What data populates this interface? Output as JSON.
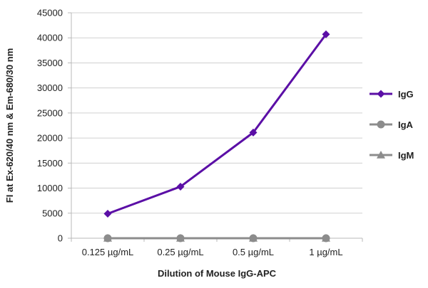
{
  "chart_data": {
    "type": "line",
    "title": "",
    "xlabel": "Dilution of Mouse IgG-APC",
    "ylabel": "FI at Ex-620/40 nm & Em-680/30 nm",
    "categories": [
      "0.125 µg/mL",
      "0.25 µg/mL",
      "0.5 µg/mL",
      "1 µg/mL"
    ],
    "ylim": [
      0,
      45000
    ],
    "yticks": [
      0,
      5000,
      10000,
      15000,
      20000,
      25000,
      30000,
      35000,
      40000,
      45000
    ],
    "grid": "horizontal",
    "legend": "right",
    "series": [
      {
        "name": "IgG",
        "values": [
          4900,
          10300,
          21100,
          40700
        ],
        "color": "#5b0fa6",
        "marker": "diamond"
      },
      {
        "name": "IgA",
        "values": [
          0,
          0,
          0,
          0
        ],
        "color": "#8c8c8c",
        "marker": "circle"
      },
      {
        "name": "IgM",
        "values": [
          0,
          0,
          0,
          0
        ],
        "color": "#8c8c8c",
        "marker": "triangle"
      }
    ]
  }
}
